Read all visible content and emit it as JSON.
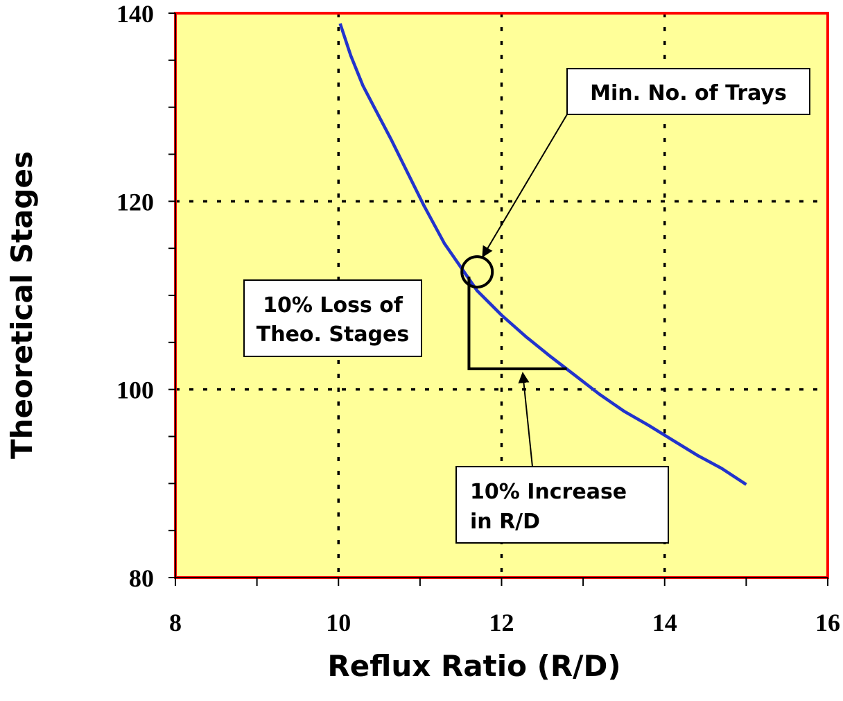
{
  "chart_data": {
    "type": "line",
    "xlabel": "Reflux Ratio (R/D)",
    "ylabel": "Theoretical Stages",
    "xlim": [
      8,
      16
    ],
    "ylim": [
      80,
      140
    ],
    "xticks": [
      "8",
      "10",
      "12",
      "14",
      "16"
    ],
    "yticks": [
      "80",
      "100",
      "120",
      "140"
    ],
    "grid": "dotted",
    "plot_background": "#FFFF99",
    "frame_color": "#FF0000",
    "series": [
      {
        "color": "#2233CC",
        "x": [
          10.02,
          10.15,
          10.3,
          10.45,
          10.65,
          10.85,
          11.05,
          11.3,
          11.5,
          11.7,
          11.85,
          12.0,
          12.3,
          12.6,
          12.9,
          13.2,
          13.5,
          13.8,
          14.1,
          14.4,
          14.7,
          15.0
        ],
        "y": [
          138.9,
          135.5,
          132.3,
          129.8,
          126.5,
          123.0,
          119.5,
          115.5,
          113.0,
          110.5,
          109.2,
          107.9,
          105.6,
          103.5,
          101.5,
          99.5,
          97.7,
          96.2,
          94.6,
          93.0,
          91.6,
          89.9
        ]
      }
    ],
    "annotations": {
      "min_trays": {
        "lines": [
          "Min. No. of Trays"
        ],
        "marker_x": 11.7,
        "marker_y": 112.5
      },
      "loss": {
        "lines": [
          "10% Loss of",
          "Theo. Stages"
        ]
      },
      "increase": {
        "lines": [
          "10% Increase",
          "in R/D"
        ]
      },
      "step_x": [
        11.6,
        12.8
      ],
      "step_y": [
        112.0,
        102.2
      ]
    }
  }
}
